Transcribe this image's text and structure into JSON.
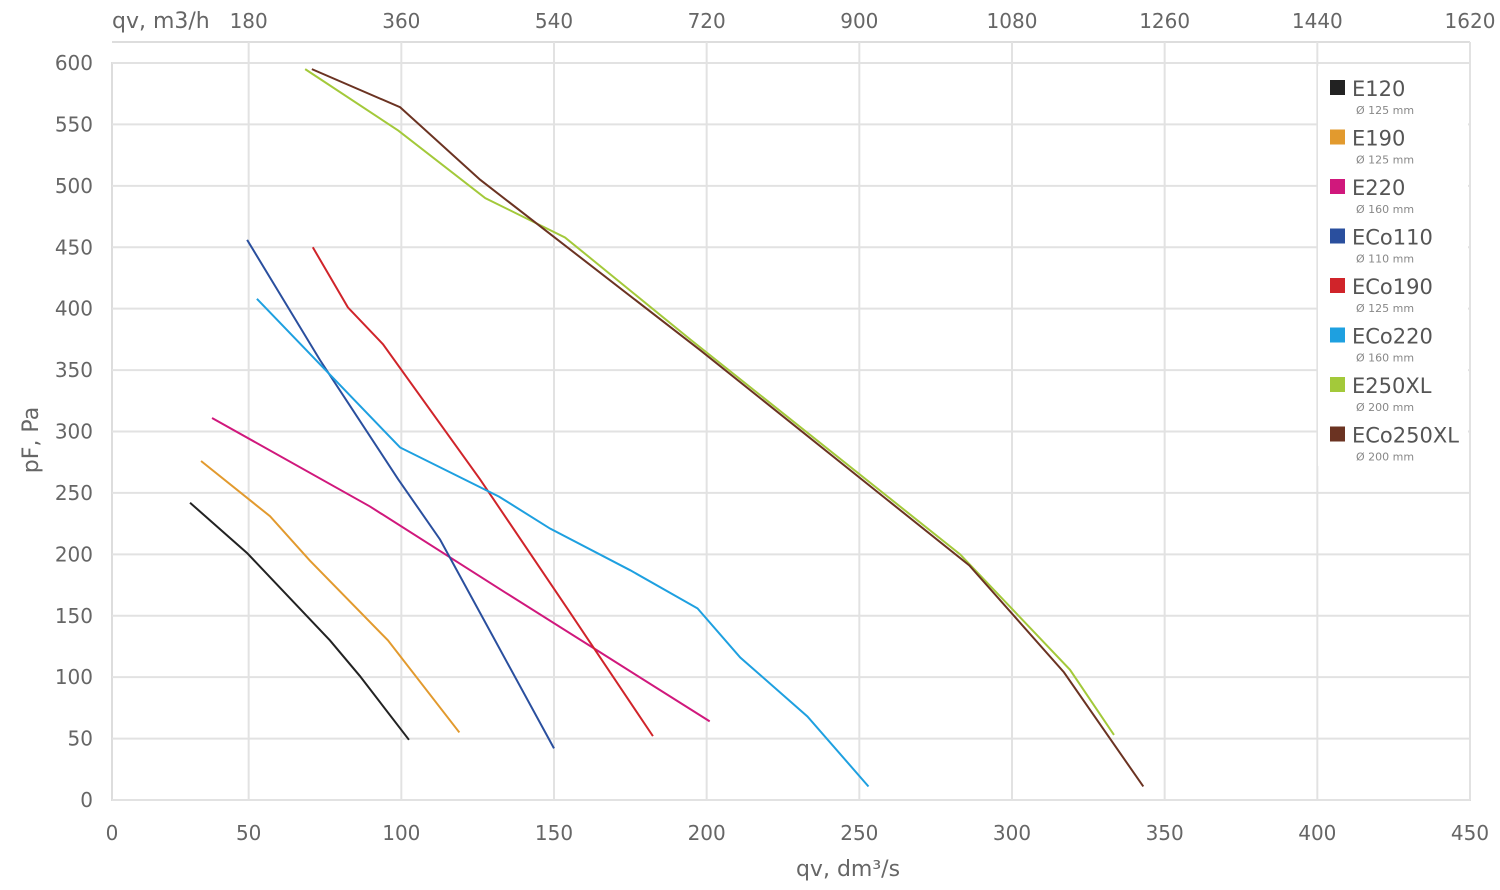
{
  "chart_data": {
    "type": "line",
    "xlabel": "qv, dm³/s",
    "ylabel": "pF, Pa",
    "x2label": "qv, m3/h",
    "xlim": [
      0,
      450
    ],
    "ylim": [
      0,
      600
    ],
    "xticks": [
      0,
      50,
      100,
      150,
      200,
      250,
      300,
      350,
      400,
      450
    ],
    "yticks": [
      0,
      50,
      100,
      150,
      200,
      250,
      300,
      350,
      400,
      450,
      500,
      550,
      600
    ],
    "x2ticks": [
      180,
      360,
      540,
      720,
      900,
      1080,
      1260,
      1440,
      1620
    ],
    "grid": true,
    "legend_position": "top-right",
    "series": [
      {
        "name": "E120",
        "sub": "Ø 125 mm",
        "color": "#222222",
        "points": [
          [
            30.8,
            242
          ],
          [
            49.5,
            201
          ],
          [
            76.6,
            130
          ],
          [
            86.4,
            101
          ],
          [
            102.5,
            49
          ]
        ]
      },
      {
        "name": "E190",
        "sub": "Ø 125 mm",
        "color": "#e29a2e",
        "points": [
          [
            34.4,
            276
          ],
          [
            57,
            231
          ],
          [
            70,
            195
          ],
          [
            95.6,
            130
          ],
          [
            119,
            55
          ]
        ]
      },
      {
        "name": "E220",
        "sub": "Ø 160 mm",
        "color": "#d0187c",
        "points": [
          [
            38,
            311
          ],
          [
            89.7,
            239
          ],
          [
            134,
            169
          ],
          [
            164,
            122
          ],
          [
            201,
            64
          ]
        ]
      },
      {
        "name": "ECo110",
        "sub": "Ø 110 mm",
        "color": "#2a4f9e",
        "points": [
          [
            49.5,
            456
          ],
          [
            73.4,
            358
          ],
          [
            99,
            261
          ],
          [
            112.7,
            212
          ],
          [
            150,
            42
          ]
        ]
      },
      {
        "name": "ECo190",
        "sub": "Ø 125 mm",
        "color": "#d0242a",
        "points": [
          [
            71,
            450
          ],
          [
            82.5,
            401
          ],
          [
            94,
            371
          ],
          [
            125.8,
            261
          ],
          [
            154.6,
            155
          ],
          [
            182.4,
            52
          ]
        ]
      },
      {
        "name": "ECo220",
        "sub": "Ø 160 mm",
        "color": "#1ea0e0",
        "points": [
          [
            52.7,
            408
          ],
          [
            99.6,
            287
          ],
          [
            132,
            247
          ],
          [
            148.7,
            221
          ],
          [
            175,
            187
          ],
          [
            197,
            156
          ],
          [
            211,
            116
          ],
          [
            233,
            68
          ],
          [
            253,
            11
          ]
        ]
      },
      {
        "name": "E250XL",
        "sub": "Ø 200 mm",
        "color": "#a3c93a",
        "points": [
          [
            68.5,
            595
          ],
          [
            99,
            545
          ],
          [
            127.5,
            490
          ],
          [
            153.6,
            458
          ],
          [
            194.6,
            375
          ],
          [
            283,
            200
          ],
          [
            319,
            106
          ],
          [
            333.4,
            53
          ]
        ]
      },
      {
        "name": "ECo250XL",
        "sub": "Ø 200 mm",
        "color": "#6b3322",
        "points": [
          [
            70.7,
            595
          ],
          [
            99.6,
            564
          ],
          [
            125.8,
            505
          ],
          [
            158.5,
            442
          ],
          [
            198,
            366
          ],
          [
            286,
            191
          ],
          [
            317,
            104
          ],
          [
            343,
            11
          ]
        ]
      }
    ]
  }
}
